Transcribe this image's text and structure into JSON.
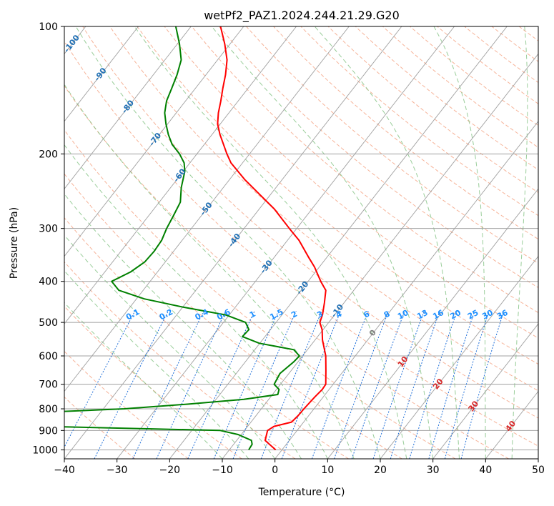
{
  "chart_data": {
    "type": "line",
    "subtype": "skew-t log-p diagram",
    "title": "wetPf2_PAZ1.2024.244.21.29.G20",
    "xlabel": "Temperature (°C)",
    "ylabel": "Pressure (hPa)",
    "xlim": [
      -40,
      50
    ],
    "ylim": [
      1050,
      100
    ],
    "y_scale": "log",
    "x_ticks": [
      -40,
      -30,
      -20,
      -10,
      0,
      10,
      20,
      30,
      40,
      50
    ],
    "y_ticks": [
      1000,
      900,
      800,
      700,
      600,
      500,
      400,
      300,
      200,
      100
    ],
    "grid": true,
    "series": [
      {
        "role": "temperature",
        "color": "#ff0000",
        "points": [
          [
            1000,
            -1.2
          ],
          [
            950,
            -4.6
          ],
          [
            900,
            -5.6
          ],
          [
            880,
            -5.0
          ],
          [
            860,
            -2.3
          ],
          [
            830,
            -2.0
          ],
          [
            800,
            -1.9
          ],
          [
            750,
            -1.6
          ],
          [
            720,
            -1.3
          ],
          [
            700,
            -1.4
          ],
          [
            650,
            -3.4
          ],
          [
            600,
            -5.6
          ],
          [
            550,
            -8.6
          ],
          [
            520,
            -10.2
          ],
          [
            500,
            -11.7
          ],
          [
            480,
            -12.3
          ],
          [
            450,
            -13.7
          ],
          [
            420,
            -15.3
          ],
          [
            400,
            -17.6
          ],
          [
            370,
            -20.9
          ],
          [
            350,
            -23.6
          ],
          [
            320,
            -27.8
          ],
          [
            300,
            -31.4
          ],
          [
            270,
            -37.1
          ],
          [
            250,
            -41.9
          ],
          [
            230,
            -47.1
          ],
          [
            210,
            -52.2
          ],
          [
            200,
            -54.3
          ],
          [
            180,
            -58.5
          ],
          [
            170,
            -60.5
          ],
          [
            160,
            -62.0
          ],
          [
            150,
            -63.3
          ],
          [
            140,
            -64.8
          ],
          [
            130,
            -66.3
          ],
          [
            120,
            -68.2
          ],
          [
            110,
            -71.0
          ],
          [
            100,
            -74.4
          ]
        ]
      },
      {
        "role": "dewpoint",
        "color": "#008000",
        "points": [
          [
            1000,
            -6.3
          ],
          [
            970,
            -6.5
          ],
          [
            950,
            -7.2
          ],
          [
            920,
            -10.6
          ],
          [
            900,
            -14.6
          ],
          [
            880,
            -48.7
          ],
          [
            860,
            -75.0
          ],
          [
            840,
            -79.0
          ],
          [
            820,
            -55.4
          ],
          [
            800,
            -36.0
          ],
          [
            780,
            -24.7
          ],
          [
            760,
            -14.7
          ],
          [
            740,
            -9.0
          ],
          [
            720,
            -9.5
          ],
          [
            700,
            -11.2
          ],
          [
            660,
            -11.7
          ],
          [
            620,
            -10.8
          ],
          [
            600,
            -10.6
          ],
          [
            580,
            -12.6
          ],
          [
            560,
            -20.1
          ],
          [
            540,
            -24.3
          ],
          [
            520,
            -24.1
          ],
          [
            500,
            -25.8
          ],
          [
            480,
            -30.7
          ],
          [
            460,
            -40.0
          ],
          [
            440,
            -48.5
          ],
          [
            420,
            -54.6
          ],
          [
            400,
            -57.3
          ],
          [
            380,
            -55.1
          ],
          [
            360,
            -53.9
          ],
          [
            340,
            -53.7
          ],
          [
            320,
            -53.9
          ],
          [
            300,
            -54.7
          ],
          [
            280,
            -55.3
          ],
          [
            260,
            -56.0
          ],
          [
            240,
            -58.0
          ],
          [
            220,
            -59.7
          ],
          [
            210,
            -61.1
          ],
          [
            200,
            -63.3
          ],
          [
            190,
            -66.1
          ],
          [
            180,
            -68.3
          ],
          [
            170,
            -70.3
          ],
          [
            160,
            -72.2
          ],
          [
            150,
            -73.6
          ],
          [
            140,
            -74.5
          ],
          [
            130,
            -75.5
          ],
          [
            120,
            -76.9
          ],
          [
            110,
            -79.6
          ],
          [
            100,
            -82.9
          ]
        ]
      }
    ],
    "reference_lines": {
      "isotherm_color": "#a0a0a0",
      "dry_adiabat_color": "#f4a080",
      "moist_adiabat_color": "#80c080",
      "mixing_ratio_color": "#1e6ed8",
      "isotherm_labels": [
        {
          "text": "-100",
          "p": 110,
          "t": -100
        },
        {
          "text": "-90",
          "p": 130,
          "t": -90
        },
        {
          "text": "-80",
          "p": 155,
          "t": -80
        },
        {
          "text": "-70",
          "p": 185,
          "t": -70
        },
        {
          "text": "-60",
          "p": 225,
          "t": -60
        },
        {
          "text": "-50",
          "p": 270,
          "t": -50
        },
        {
          "text": "-40",
          "p": 320,
          "t": -40
        },
        {
          "text": "-30",
          "p": 370,
          "t": -30
        },
        {
          "text": "-20",
          "p": 415,
          "t": -20
        },
        {
          "text": "-10",
          "p": 470,
          "t": -10
        },
        {
          "text": "0",
          "p": 530,
          "t": 0
        },
        {
          "text": "10",
          "p": 620,
          "t": 10
        },
        {
          "text": "20",
          "p": 700,
          "t": 20
        },
        {
          "text": "30",
          "p": 790,
          "t": 30
        },
        {
          "text": "40",
          "p": 880,
          "t": 40
        }
      ],
      "mixing_ratio_labels": [
        "0.1",
        "0.2",
        "0.4",
        "0.6",
        "1",
        "1.5",
        "2",
        "3",
        "4",
        "6",
        "8",
        "10",
        "13",
        "16",
        "20",
        "25",
        "30",
        "36"
      ],
      "mixing_ratio_label_pressure": 480,
      "mixing_ratio_label_color": "#1e90ff",
      "warm_isotherm_label_color": "#d62728",
      "cold_isotherm_label_color": "#1f6fb4",
      "zero_isotherm_label_color": "#808080"
    }
  }
}
